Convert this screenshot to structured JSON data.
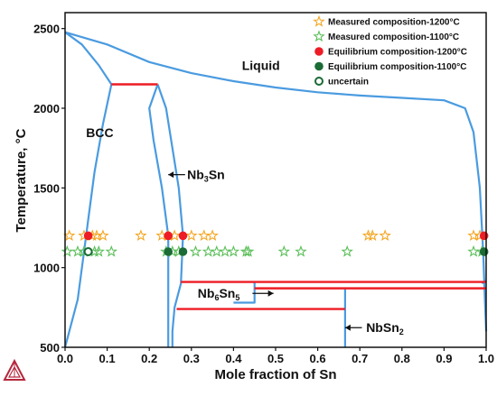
{
  "chart_data": {
    "type": "scatter",
    "xlabel": "Mole fraction of Sn",
    "ylabel": "Temperature, °C",
    "xlim": [
      0,
      1.0
    ],
    "ylim": [
      500,
      2600
    ],
    "xticks": [
      "0.0",
      "0.1",
      "0.2",
      "0.3",
      "0.4",
      "0.5",
      "0.6",
      "0.7",
      "0.8",
      "0.9",
      "1.0"
    ],
    "yticks": [
      "500",
      "1000",
      "1500",
      "2000",
      "2500"
    ],
    "legend": {
      "placement": "top-right",
      "entries": [
        {
          "label": "Measured composition-1200°C",
          "marker": "star",
          "color": "#f5a623"
        },
        {
          "label": "Measured composition-1100°C",
          "marker": "star",
          "color": "#5cbf5a"
        },
        {
          "label": "Equilibrium composition-1200°C",
          "marker": "circle",
          "color": "#ee1c25"
        },
        {
          "label": "Equilibrium composition-1100°C",
          "marker": "circle",
          "color": "#1a6b35"
        },
        {
          "label": "uncertain",
          "marker": "open-circle",
          "color": "#1a6b35"
        }
      ]
    },
    "region_labels": [
      {
        "text": "Liquid",
        "x": 0.42,
        "y": 2240
      },
      {
        "text": "BCC",
        "x": 0.05,
        "y": 1820
      }
    ],
    "phase_labels": [
      {
        "base": "Nb",
        "sub1": "3",
        "mid": "Sn",
        "sub2": "",
        "x": 0.29,
        "y": 1555,
        "arrow_from": 0.285,
        "arrow_to": 0.245
      },
      {
        "base": "Nb",
        "sub1": "6",
        "mid": "Sn",
        "sub2": "5",
        "x": 0.315,
        "y": 810,
        "arrow_from": 0.445,
        "arrow_to": 0.495
      },
      {
        "base": "NbSn",
        "sub1": "",
        "mid": "",
        "sub2": "2",
        "x": 0.715,
        "y": 595,
        "arrow_from": 0.705,
        "arrow_to": 0.665
      }
    ],
    "series": [
      {
        "name": "Measured composition-1200°C",
        "marker": "star",
        "color": "#f5a623",
        "x": [
          0.01,
          0.045,
          0.065,
          0.075,
          0.09,
          0.18,
          0.23,
          0.245,
          0.26,
          0.3,
          0.33,
          0.35,
          0.72,
          0.73,
          0.76,
          0.97,
          0.985
        ],
        "y": [
          1200,
          1200,
          1200,
          1200,
          1200,
          1200,
          1200,
          1200,
          1200,
          1200,
          1200,
          1200,
          1200,
          1200,
          1200,
          1200,
          1200
        ]
      },
      {
        "name": "Measured composition-1100°C",
        "marker": "star",
        "color": "#5cbf5a",
        "x": [
          0.005,
          0.03,
          0.045,
          0.07,
          0.08,
          0.11,
          0.24,
          0.255,
          0.27,
          0.31,
          0.34,
          0.36,
          0.38,
          0.4,
          0.43,
          0.435,
          0.52,
          0.56,
          0.67,
          0.97,
          0.99
        ],
        "y": [
          1100,
          1100,
          1100,
          1100,
          1100,
          1100,
          1100,
          1100,
          1100,
          1100,
          1100,
          1100,
          1100,
          1100,
          1100,
          1100,
          1100,
          1100,
          1100,
          1100,
          1100
        ]
      },
      {
        "name": "Equilibrium composition-1200°C",
        "marker": "circle",
        "color": "#ee1c25",
        "x": [
          0.055,
          0.245,
          0.28,
          0.995
        ],
        "y": [
          1200,
          1200,
          1200,
          1200
        ]
      },
      {
        "name": "Equilibrium composition-1100°C",
        "marker": "circle",
        "color": "#1a6b35",
        "x": [
          0.245,
          0.28,
          0.995
        ],
        "y": [
          1100,
          1100,
          1100
        ]
      },
      {
        "name": "uncertain",
        "marker": "open-circle",
        "color": "#1a6b35",
        "x": [
          0.055
        ],
        "y": [
          1100
        ]
      }
    ],
    "phase_boundaries": [
      {
        "color": "#4a9be0",
        "points": [
          [
            0.0,
            2477
          ],
          [
            0.04,
            2400
          ],
          [
            0.08,
            2270
          ],
          [
            0.11,
            2150
          ]
        ]
      },
      {
        "color": "#4a9be0",
        "points": [
          [
            0.0,
            2477
          ],
          [
            0.1,
            2400
          ],
          [
            0.2,
            2290
          ],
          [
            0.3,
            2220
          ],
          [
            0.4,
            2170
          ],
          [
            0.5,
            2130
          ],
          [
            0.6,
            2100
          ],
          [
            0.7,
            2080
          ],
          [
            0.8,
            2065
          ],
          [
            0.9,
            2050
          ],
          [
            0.95,
            2000
          ],
          [
            0.97,
            1850
          ],
          [
            0.985,
            1500
          ],
          [
            0.993,
            1100
          ],
          [
            0.997,
            800
          ],
          [
            1.0,
            600
          ]
        ]
      },
      {
        "color": "#4a9be0",
        "points": [
          [
            0.11,
            2150
          ],
          [
            0.09,
            1900
          ],
          [
            0.07,
            1600
          ],
          [
            0.055,
            1300
          ],
          [
            0.045,
            1100
          ],
          [
            0.03,
            800
          ],
          [
            0.0,
            500
          ]
        ]
      },
      {
        "color": "#4a9be0",
        "points": [
          [
            0.22,
            2150
          ],
          [
            0.2,
            2000
          ],
          [
            0.21,
            1800
          ],
          [
            0.23,
            1500
          ],
          [
            0.245,
            1200
          ],
          [
            0.245,
            900
          ],
          [
            0.245,
            500
          ]
        ]
      },
      {
        "color": "#4a9be0",
        "points": [
          [
            0.22,
            2150
          ],
          [
            0.24,
            2000
          ],
          [
            0.255,
            1750
          ],
          [
            0.27,
            1500
          ],
          [
            0.28,
            1200
          ],
          [
            0.275,
            900
          ],
          [
            0.26,
            750
          ],
          [
            0.255,
            600
          ],
          [
            0.255,
            500
          ]
        ]
      },
      {
        "color": "#4a9be0",
        "points": [
          [
            0.4,
            780
          ],
          [
            0.45,
            780
          ],
          [
            0.45,
            910
          ]
        ]
      },
      {
        "color": "#4a9be0",
        "points": [
          [
            0.665,
            500
          ],
          [
            0.665,
            870
          ]
        ]
      },
      {
        "color": "#4a9be0",
        "points": [
          [
            0.99,
            900
          ],
          [
            1.0,
            920
          ]
        ]
      }
    ],
    "invariant_lines": [
      {
        "color": "#ee1c25",
        "x": [
          0.11,
          0.22
        ],
        "y": 2150
      },
      {
        "color": "#ee1c25",
        "x": [
          0.275,
          1.0
        ],
        "y": 910
      },
      {
        "color": "#ee1c25",
        "x": [
          0.45,
          1.0
        ],
        "y": 870
      },
      {
        "color": "#ee1c25",
        "x": [
          0.265,
          0.665
        ],
        "y": 740
      }
    ]
  }
}
